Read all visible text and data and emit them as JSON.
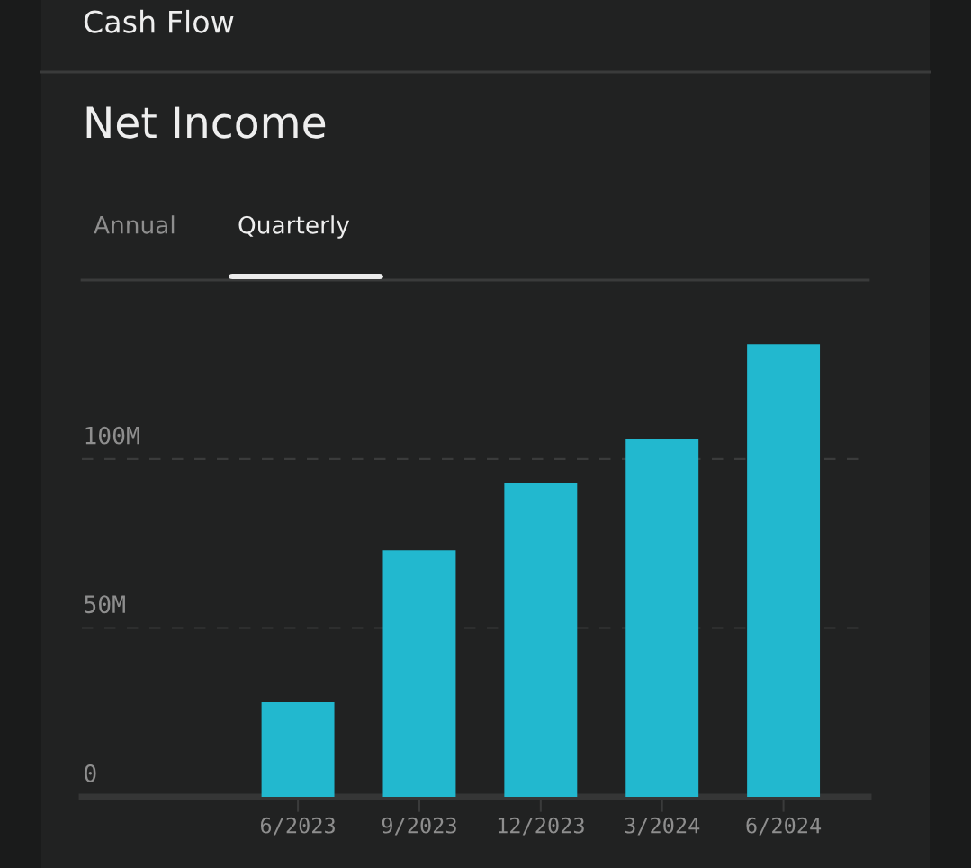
{
  "chart_data": {
    "type": "bar",
    "title": "Net Income",
    "annotations": [
      "Cash Flow",
      "Annual",
      "Quarterly"
    ],
    "categories": [
      "6/2023",
      "9/2023",
      "12/2023",
      "3/2024",
      "6/2024"
    ],
    "values": [
      28,
      73,
      93,
      106,
      134
    ],
    "color": "#22b8cf",
    "ylim": [
      0,
      153
    ],
    "yticks": [
      {
        "value": 0,
        "label": "0"
      },
      {
        "value": 50,
        "label": "50M"
      },
      {
        "value": 100,
        "label": "100M"
      }
    ],
    "grid": "y"
  }
}
